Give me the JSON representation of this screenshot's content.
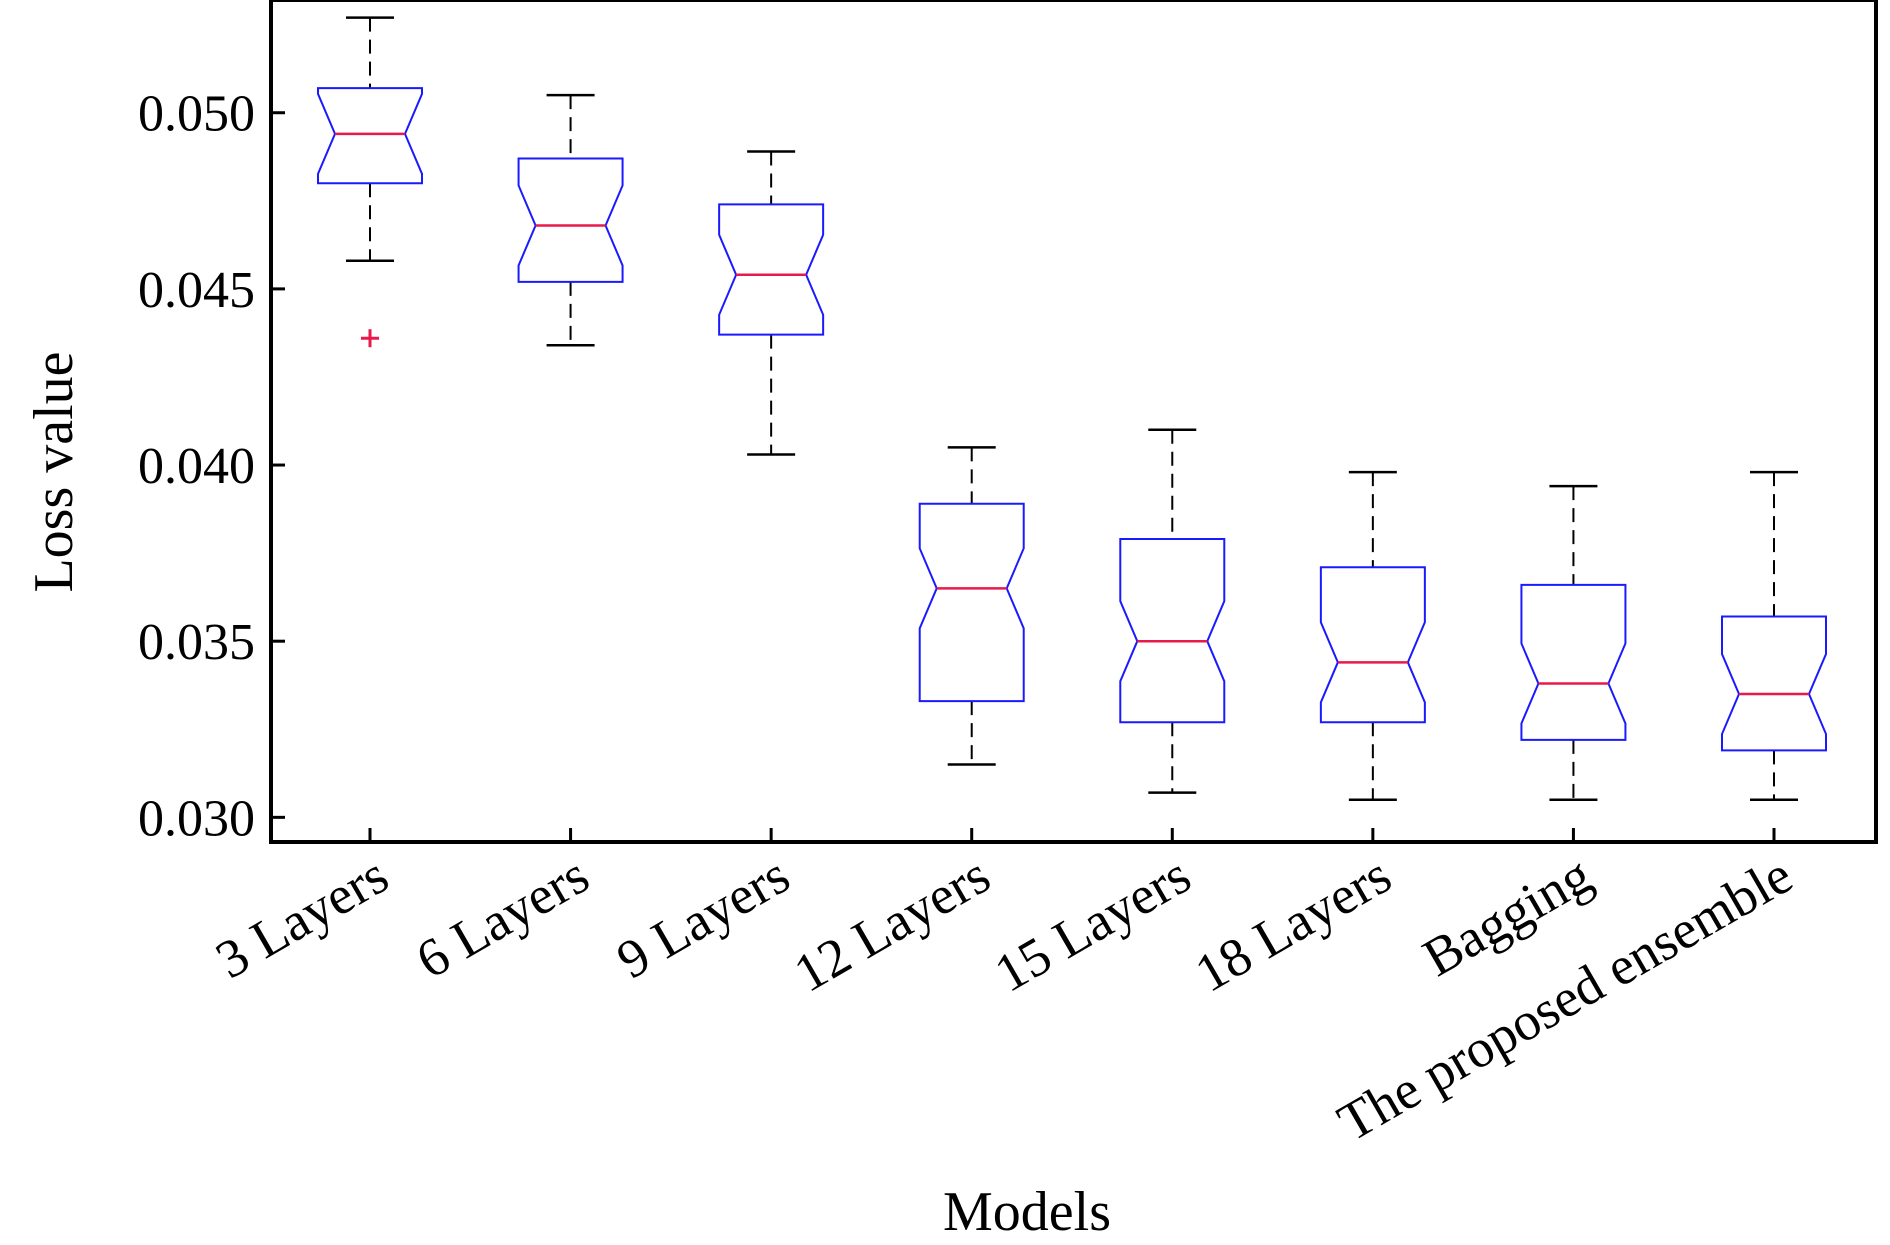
{
  "chart_data": {
    "type": "boxplot",
    "title": "",
    "xlabel": "Models",
    "ylabel": "Loss value",
    "ylim": [
      0.0293,
      0.0532
    ],
    "yticks": [
      0.03,
      0.035,
      0.04,
      0.045,
      0.05
    ],
    "ytick_labels": [
      "0.030",
      "0.035",
      "0.040",
      "0.045",
      "0.050"
    ],
    "notched": true,
    "grid": false,
    "colors": {
      "box": "#1a1aff",
      "median": "#e8194b",
      "whisker": "#000000",
      "outlier": "#e8194b",
      "frame": "#000000"
    },
    "categories": [
      "3 Layers",
      "6 Layers",
      "9 Layers",
      "12 Layers",
      "15 Layers",
      "18 Layers",
      "Bagging",
      "The proposed ensemble"
    ],
    "boxes": [
      {
        "name": "3 Layers",
        "whisker_low": 0.0458,
        "q1": 0.048,
        "median": 0.0494,
        "q3": 0.0507,
        "whisker_high": 0.0527,
        "outliers": [
          0.0436
        ]
      },
      {
        "name": "6 Layers",
        "whisker_low": 0.0434,
        "q1": 0.0452,
        "median": 0.0468,
        "q3": 0.0487,
        "whisker_high": 0.0505,
        "outliers": []
      },
      {
        "name": "9 Layers",
        "whisker_low": 0.0403,
        "q1": 0.0437,
        "median": 0.0454,
        "q3": 0.0474,
        "whisker_high": 0.0489,
        "outliers": []
      },
      {
        "name": "12 Layers",
        "whisker_low": 0.0315,
        "q1": 0.0333,
        "median": 0.0365,
        "q3": 0.0389,
        "whisker_high": 0.0405,
        "outliers": []
      },
      {
        "name": "15 Layers",
        "whisker_low": 0.0307,
        "q1": 0.0327,
        "median": 0.035,
        "q3": 0.0379,
        "whisker_high": 0.041,
        "outliers": []
      },
      {
        "name": "18 Layers",
        "whisker_low": 0.0305,
        "q1": 0.0327,
        "median": 0.0344,
        "q3": 0.0371,
        "whisker_high": 0.0398,
        "outliers": []
      },
      {
        "name": "Bagging",
        "whisker_low": 0.0305,
        "q1": 0.0322,
        "median": 0.0338,
        "q3": 0.0366,
        "whisker_high": 0.0394,
        "outliers": []
      },
      {
        "name": "The proposed ensemble",
        "whisker_low": 0.0305,
        "q1": 0.0319,
        "median": 0.0335,
        "q3": 0.0357,
        "whisker_high": 0.0398,
        "outliers": []
      }
    ]
  }
}
